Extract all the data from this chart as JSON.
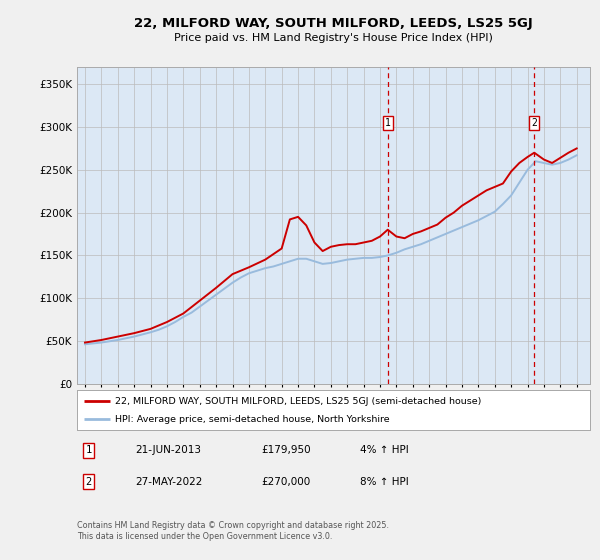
{
  "title": "22, MILFORD WAY, SOUTH MILFORD, LEEDS, LS25 5GJ",
  "subtitle": "Price paid vs. HM Land Registry's House Price Index (HPI)",
  "legend_line1": "22, MILFORD WAY, SOUTH MILFORD, LEEDS, LS25 5GJ (semi-detached house)",
  "legend_line2": "HPI: Average price, semi-detached house, North Yorkshire",
  "annotation1_label": "1",
  "annotation1_date": "21-JUN-2013",
  "annotation1_price": "£179,950",
  "annotation1_hpi": "4% ↑ HPI",
  "annotation2_label": "2",
  "annotation2_date": "27-MAY-2022",
  "annotation2_price": "£270,000",
  "annotation2_hpi": "8% ↑ HPI",
  "copyright": "Contains HM Land Registry data © Crown copyright and database right 2025.\nThis data is licensed under the Open Government Licence v3.0.",
  "fig_bg": "#f0f0f0",
  "plot_bg": "#dce8f5",
  "grid_color": "#bbbbbb",
  "red_line_color": "#cc0000",
  "blue_line_color": "#99bbdd",
  "vline_color": "#cc0000",
  "vline1_year": 2013.47,
  "vline2_year": 2022.41,
  "ylim": [
    0,
    370000
  ],
  "yticks": [
    0,
    50000,
    100000,
    150000,
    200000,
    250000,
    300000,
    350000
  ],
  "xlim": [
    1994.5,
    2025.8
  ],
  "hpi_years": [
    1995,
    1995.5,
    1996,
    1996.5,
    1997,
    1997.5,
    1998,
    1998.5,
    1999,
    1999.5,
    2000,
    2000.5,
    2001,
    2001.5,
    2002,
    2002.5,
    2003,
    2003.5,
    2004,
    2004.5,
    2005,
    2005.5,
    2006,
    2006.5,
    2007,
    2007.5,
    2008,
    2008.5,
    2009,
    2009.5,
    2010,
    2010.5,
    2011,
    2011.5,
    2012,
    2012.5,
    2013,
    2013.5,
    2014,
    2014.5,
    2015,
    2015.5,
    2016,
    2016.5,
    2017,
    2017.5,
    2018,
    2018.5,
    2019,
    2019.5,
    2020,
    2020.5,
    2021,
    2021.5,
    2022,
    2022.5,
    2023,
    2023.5,
    2024,
    2024.5,
    2025
  ],
  "hpi_values": [
    46000,
    47000,
    48000,
    49500,
    51000,
    53000,
    55000,
    57500,
    60000,
    63000,
    67000,
    72000,
    78000,
    83000,
    90000,
    97000,
    104000,
    111000,
    118000,
    124000,
    129000,
    132000,
    135000,
    137000,
    140000,
    143000,
    146000,
    146000,
    143000,
    140000,
    141000,
    143000,
    145000,
    146000,
    147000,
    147000,
    148000,
    150000,
    153000,
    157000,
    160000,
    163000,
    167000,
    171000,
    175000,
    179000,
    183000,
    187000,
    191000,
    196000,
    201000,
    210000,
    220000,
    235000,
    250000,
    260000,
    258000,
    256000,
    258000,
    262000,
    267000
  ],
  "red_years": [
    1995,
    1996,
    1997,
    1998,
    1999,
    2000,
    2001,
    2002,
    2003,
    2004,
    2005,
    2006,
    2007,
    2007.5,
    2008,
    2008.5,
    2009,
    2009.5,
    2010,
    2010.5,
    2011,
    2011.5,
    2012,
    2012.5,
    2013,
    2013.47,
    2014,
    2014.5,
    2015,
    2015.5,
    2016,
    2016.5,
    2017,
    2017.5,
    2018,
    2018.5,
    2019,
    2019.5,
    2020,
    2020.5,
    2021,
    2021.5,
    2022,
    2022.41,
    2023,
    2023.5,
    2024,
    2024.5,
    2025
  ],
  "red_values": [
    48000,
    51000,
    55000,
    59000,
    64000,
    72000,
    82000,
    97000,
    112000,
    128000,
    136000,
    145000,
    158000,
    192000,
    195000,
    185000,
    165000,
    155000,
    160000,
    162000,
    163000,
    163000,
    165000,
    167000,
    172000,
    179950,
    172000,
    170000,
    175000,
    178000,
    182000,
    186000,
    194000,
    200000,
    208000,
    214000,
    220000,
    226000,
    230000,
    234000,
    248000,
    258000,
    265000,
    270000,
    262000,
    258000,
    264000,
    270000,
    275000
  ]
}
